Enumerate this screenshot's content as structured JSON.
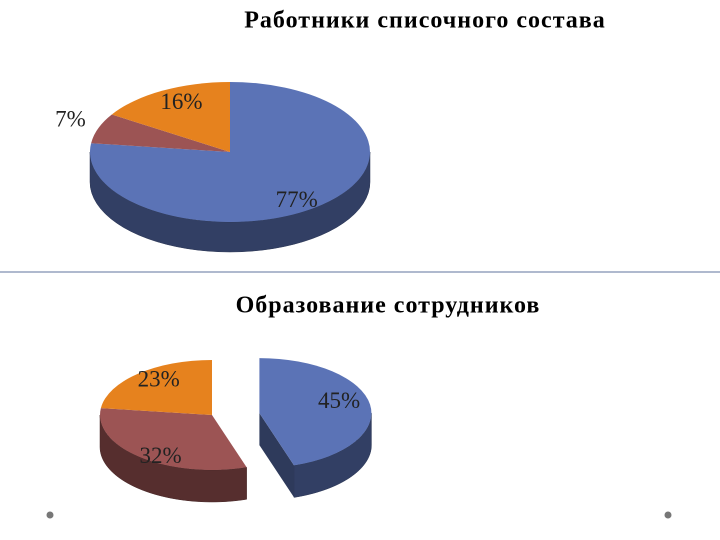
{
  "chart_data": [
    {
      "type": "pie",
      "title": "Работники списочного состава",
      "values": [
        77,
        7,
        16
      ],
      "value_labels": [
        "77%",
        "7%",
        "16%"
      ],
      "colors": [
        "#5b73b6",
        "#9c5454",
        "#e6821e"
      ],
      "exploded": [
        false,
        false,
        false
      ]
    },
    {
      "type": "pie",
      "title": "Образование сотрудников",
      "values": [
        45,
        32,
        23
      ],
      "value_labels": [
        "45%",
        "32%",
        "23%"
      ],
      "colors": [
        "#5b73b6",
        "#9c5454",
        "#e6821e"
      ],
      "exploded": [
        true,
        false,
        false
      ]
    }
  ]
}
